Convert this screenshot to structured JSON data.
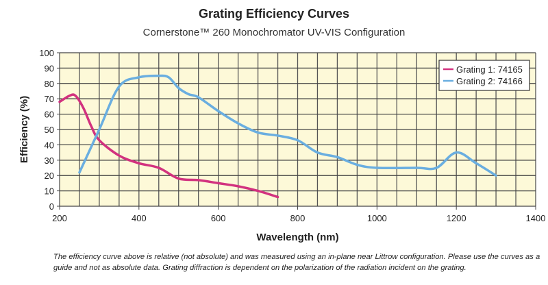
{
  "chart_data": {
    "type": "line",
    "title": "Grating Efficiency Curves",
    "subtitle": "Cornerstone™ 260 Monochromator UV-VIS Configuration",
    "xlabel": "Wavelength (nm)",
    "ylabel": "Efficiency (%)",
    "xlim": [
      200,
      1400
    ],
    "ylim": [
      0,
      100
    ],
    "xticks": [
      200,
      400,
      600,
      800,
      1000,
      1200,
      1400
    ],
    "yticks": [
      0,
      10,
      20,
      30,
      40,
      50,
      60,
      70,
      80,
      90,
      100
    ],
    "grid": true,
    "legend_position": "top-right",
    "background_color": "#fdf9d8",
    "series": [
      {
        "name": "Grating 1: 74165",
        "color": "#d2327f",
        "x": [
          200,
          225,
          240,
          260,
          280,
          300,
          350,
          400,
          450,
          500,
          550,
          600,
          650,
          700,
          750
        ],
        "y": [
          68,
          72,
          72,
          64,
          52,
          43,
          33,
          28,
          25,
          18,
          17,
          15,
          13,
          10,
          6
        ]
      },
      {
        "name": "Grating 2: 74166",
        "color": "#6aaee0",
        "x": [
          250,
          300,
          350,
          400,
          450,
          475,
          500,
          525,
          550,
          600,
          650,
          700,
          750,
          800,
          850,
          900,
          950,
          1000,
          1100,
          1150,
          1200,
          1250,
          1300
        ],
        "y": [
          22,
          50,
          78,
          84,
          85,
          84,
          77,
          73,
          71,
          62,
          54,
          48,
          46,
          43,
          35,
          32,
          27,
          25,
          25,
          25,
          35,
          28,
          20
        ]
      }
    ],
    "caption": "The efficiency curve above is relative (not absolute) and was measured using an in-plane near Littrow configuration.  Please use the curves as a guide and not as absolute data.  Grating diffraction is dependent on the polarization of the radiation incident on the grating."
  }
}
